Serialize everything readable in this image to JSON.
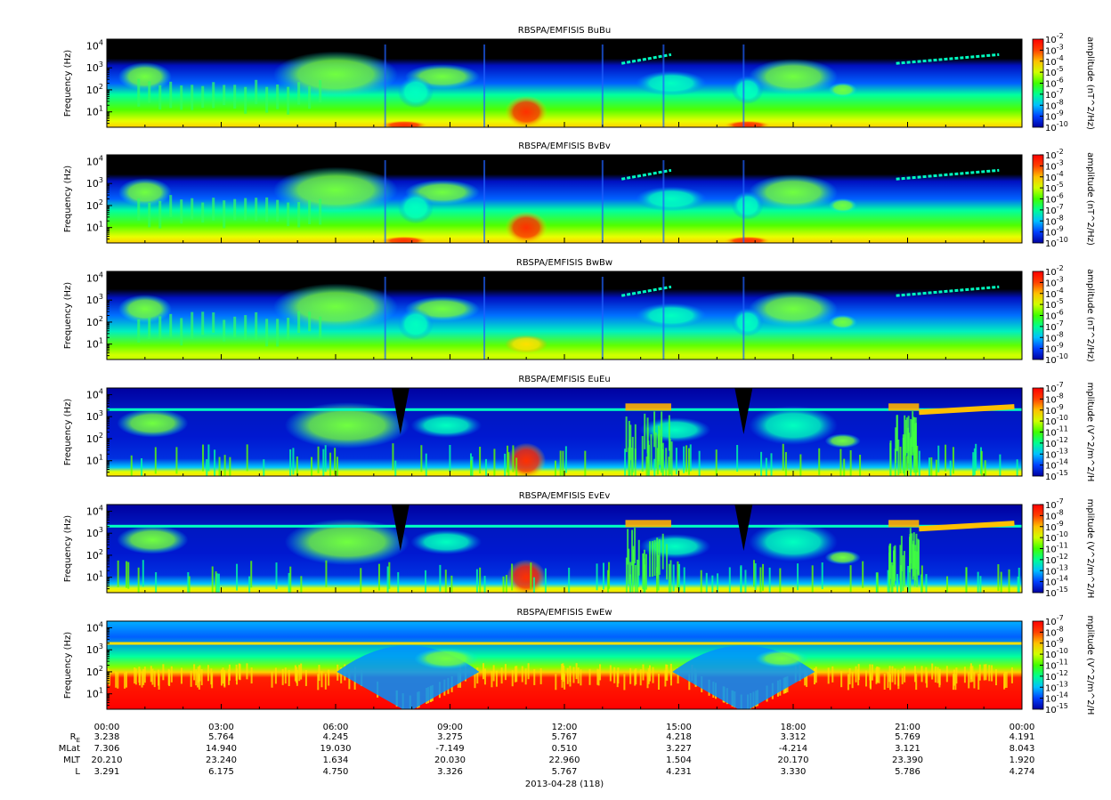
{
  "colors": {
    "background": "#000000",
    "colormap": [
      "#0000a0",
      "#0040ff",
      "#00c0ff",
      "#00ff90",
      "#40ff00",
      "#d0ff00",
      "#ffc000",
      "#ff4000",
      "#ff0000"
    ]
  },
  "chart_data": [
    {
      "type": "heatmap",
      "title": "RBSPA/EMFISIS  BuBu",
      "ylabel": "Frequency (Hz)",
      "yscale": "log",
      "ylim": [
        2,
        20000
      ],
      "yticks": [
        {
          "base": "10",
          "exp": "1"
        },
        {
          "base": "10",
          "exp": "2"
        },
        {
          "base": "10",
          "exp": "3"
        },
        {
          "base": "10",
          "exp": "4"
        }
      ],
      "colorbar": {
        "label": "amplitude (nT^2/Hz)",
        "range_exp": [
          -10,
          -2
        ],
        "ticks": [
          {
            "base": "10",
            "exp": "-2"
          },
          {
            "base": "10",
            "exp": "-3"
          },
          {
            "base": "10",
            "exp": "-4"
          },
          {
            "base": "10",
            "exp": "-5"
          },
          {
            "base": "10",
            "exp": "-6"
          },
          {
            "base": "10",
            "exp": "-7"
          },
          {
            "base": "10",
            "exp": "-8"
          },
          {
            "base": "10",
            "exp": "-9"
          },
          {
            "base": "10",
            "exp": "-10"
          }
        ]
      },
      "kind": "B"
    },
    {
      "type": "heatmap",
      "title": "RBSPA/EMFISIS  BvBv",
      "ylabel": "Frequency (Hz)",
      "yscale": "log",
      "ylim": [
        2,
        20000
      ],
      "yticks": [
        {
          "base": "10",
          "exp": "1"
        },
        {
          "base": "10",
          "exp": "2"
        },
        {
          "base": "10",
          "exp": "3"
        },
        {
          "base": "10",
          "exp": "4"
        }
      ],
      "colorbar": {
        "label": "amplitude (nT^2/Hz)",
        "range_exp": [
          -10,
          -2
        ],
        "ticks": [
          {
            "base": "10",
            "exp": "-2"
          },
          {
            "base": "10",
            "exp": "-3"
          },
          {
            "base": "10",
            "exp": "-4"
          },
          {
            "base": "10",
            "exp": "-5"
          },
          {
            "base": "10",
            "exp": "-6"
          },
          {
            "base": "10",
            "exp": "-7"
          },
          {
            "base": "10",
            "exp": "-8"
          },
          {
            "base": "10",
            "exp": "-9"
          },
          {
            "base": "10",
            "exp": "-10"
          }
        ]
      },
      "kind": "B"
    },
    {
      "type": "heatmap",
      "title": "RBSPA/EMFISIS  BwBw",
      "ylabel": "Frequency (Hz)",
      "yscale": "log",
      "ylim": [
        2,
        20000
      ],
      "yticks": [
        {
          "base": "10",
          "exp": "1"
        },
        {
          "base": "10",
          "exp": "2"
        },
        {
          "base": "10",
          "exp": "3"
        },
        {
          "base": "10",
          "exp": "4"
        }
      ],
      "colorbar": {
        "label": "amplitude (nT^2/Hz)",
        "range_exp": [
          -10,
          -2
        ],
        "ticks": [
          {
            "base": "10",
            "exp": "-2"
          },
          {
            "base": "10",
            "exp": "-3"
          },
          {
            "base": "10",
            "exp": "-4"
          },
          {
            "base": "10",
            "exp": "-5"
          },
          {
            "base": "10",
            "exp": "-6"
          },
          {
            "base": "10",
            "exp": "-7"
          },
          {
            "base": "10",
            "exp": "-8"
          },
          {
            "base": "10",
            "exp": "-9"
          },
          {
            "base": "10",
            "exp": "-10"
          }
        ]
      },
      "kind": "Bw"
    },
    {
      "type": "heatmap",
      "title": "RBSPA/EMFISIS  EuEu",
      "ylabel": "Frequency (Hz)",
      "yscale": "log",
      "ylim": [
        2,
        20000
      ],
      "yticks": [
        {
          "base": "10",
          "exp": "1"
        },
        {
          "base": "10",
          "exp": "2"
        },
        {
          "base": "10",
          "exp": "3"
        },
        {
          "base": "10",
          "exp": "4"
        }
      ],
      "colorbar": {
        "label": "mplitude (V^2/m^2/H",
        "range_exp": [
          -15,
          -7
        ],
        "ticks": [
          {
            "base": "10",
            "exp": "-7"
          },
          {
            "base": "10",
            "exp": "-8"
          },
          {
            "base": "10",
            "exp": "-9"
          },
          {
            "base": "10",
            "exp": "-10"
          },
          {
            "base": "10",
            "exp": "-11"
          },
          {
            "base": "10",
            "exp": "-12"
          },
          {
            "base": "10",
            "exp": "-13"
          },
          {
            "base": "10",
            "exp": "-14"
          },
          {
            "base": "10",
            "exp": "-15"
          }
        ]
      },
      "kind": "E"
    },
    {
      "type": "heatmap",
      "title": "RBSPA/EMFISIS  EvEv",
      "ylabel": "Frequency (Hz)",
      "yscale": "log",
      "ylim": [
        2,
        20000
      ],
      "yticks": [
        {
          "base": "10",
          "exp": "1"
        },
        {
          "base": "10",
          "exp": "2"
        },
        {
          "base": "10",
          "exp": "3"
        },
        {
          "base": "10",
          "exp": "4"
        }
      ],
      "colorbar": {
        "label": "mplitude (V^2/m^2/H",
        "range_exp": [
          -15,
          -7
        ],
        "ticks": [
          {
            "base": "10",
            "exp": "-7"
          },
          {
            "base": "10",
            "exp": "-8"
          },
          {
            "base": "10",
            "exp": "-9"
          },
          {
            "base": "10",
            "exp": "-10"
          },
          {
            "base": "10",
            "exp": "-11"
          },
          {
            "base": "10",
            "exp": "-12"
          },
          {
            "base": "10",
            "exp": "-13"
          },
          {
            "base": "10",
            "exp": "-14"
          },
          {
            "base": "10",
            "exp": "-15"
          }
        ]
      },
      "kind": "E"
    },
    {
      "type": "heatmap",
      "title": "RBSPA/EMFISIS  EwEw",
      "ylabel": "Frequency (Hz)",
      "yscale": "log",
      "ylim": [
        2,
        20000
      ],
      "yticks": [
        {
          "base": "10",
          "exp": "1"
        },
        {
          "base": "10",
          "exp": "2"
        },
        {
          "base": "10",
          "exp": "3"
        },
        {
          "base": "10",
          "exp": "4"
        }
      ],
      "colorbar": {
        "label": "mplitude (V^2/m^2/H",
        "range_exp": [
          -15,
          -7
        ],
        "ticks": [
          {
            "base": "10",
            "exp": "-7"
          },
          {
            "base": "10",
            "exp": "-8"
          },
          {
            "base": "10",
            "exp": "-9"
          },
          {
            "base": "10",
            "exp": "-10"
          },
          {
            "base": "10",
            "exp": "-11"
          },
          {
            "base": "10",
            "exp": "-12"
          },
          {
            "base": "10",
            "exp": "-13"
          },
          {
            "base": "10",
            "exp": "-14"
          },
          {
            "base": "10",
            "exp": "-15"
          }
        ]
      },
      "kind": "Ew"
    }
  ],
  "xaxis": {
    "ticks": [
      "00:00",
      "03:00",
      "06:00",
      "09:00",
      "12:00",
      "15:00",
      "18:00",
      "21:00",
      "00:00"
    ],
    "minor_per_major": 3,
    "date_label": "2013-04-28 (118)"
  },
  "ephemeris": {
    "rows": [
      {
        "label_main": "R",
        "label_sub": "E",
        "values": [
          "3.238",
          "5.764",
          "4.245",
          "3.275",
          "5.767",
          "4.218",
          "3.312",
          "5.769",
          "4.191"
        ]
      },
      {
        "label_main": "MLat",
        "label_sub": "",
        "values": [
          "7.306",
          "14.940",
          "19.030",
          "-7.149",
          "0.510",
          "3.227",
          "-4.214",
          "3.121",
          "8.043"
        ]
      },
      {
        "label_main": "MLT",
        "label_sub": "",
        "values": [
          "20.210",
          "23.240",
          "1.634",
          "20.030",
          "22.960",
          "1.504",
          "20.170",
          "23.390",
          "1.920"
        ]
      },
      {
        "label_main": "L",
        "label_sub": "",
        "values": [
          "3.291",
          "6.175",
          "4.750",
          "3.326",
          "5.767",
          "4.231",
          "3.330",
          "5.786",
          "4.274"
        ]
      }
    ]
  }
}
